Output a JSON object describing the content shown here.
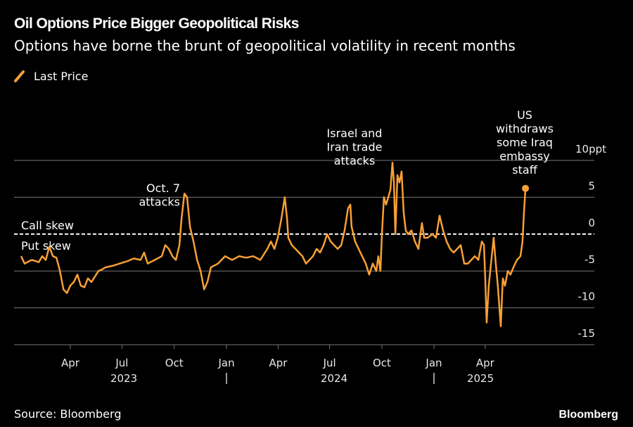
{
  "chart_data": {
    "type": "line",
    "title": "Oil Options Price Bigger Geopolitical Risks",
    "subtitle": "Options have borne the brunt of geopolitical volatility in recent months",
    "source": "Source: Bloomberg",
    "brand": "Bloomberg",
    "zero_labels": [
      "Call skew",
      "Put skew"
    ],
    "annotations": [
      {
        "text": [
          "Oct. 7",
          "attacks"
        ]
      },
      {
        "text": [
          "Israel and",
          "Iran trade",
          "attacks"
        ]
      },
      {
        "text": [
          "US",
          "withdraws",
          "some Iraq",
          "embassy",
          "staff"
        ]
      }
    ],
    "xlim": [
      2022.976,
      2025.773
    ],
    "xticks": [
      {
        "value": 2023.247,
        "label": "Apr"
      },
      {
        "value": 2023.496,
        "label": "Jul"
      },
      {
        "value": 2023.748,
        "label": "Oct"
      },
      {
        "value": 2024.0,
        "label": "Jan"
      },
      {
        "value": 2024.249,
        "label": "Apr"
      },
      {
        "value": 2024.497,
        "label": "Jul"
      },
      {
        "value": 2024.749,
        "label": "Oct"
      },
      {
        "value": 2025.0,
        "label": "Jan"
      },
      {
        "value": 2025.247,
        "label": "Apr"
      }
    ],
    "year_labels": [
      {
        "value": 2023.505,
        "label": "2023"
      },
      {
        "value": 2024.519,
        "label": "2024"
      },
      {
        "value": 2025.224,
        "label": "2025"
      }
    ],
    "year_separators": [
      2024,
      2025
    ],
    "ylim": [
      -15,
      10
    ],
    "yticks": [
      {
        "value": 10,
        "label": "10ppt"
      },
      5,
      0,
      -5,
      -10,
      -15
    ],
    "grid": true,
    "legend": "top-left",
    "x": [
      2023.01,
      2023.027,
      2023.061,
      2023.095,
      2023.112,
      2023.129,
      2023.146,
      2023.163,
      2023.18,
      2023.197,
      2023.214,
      2023.231,
      2023.247,
      2023.264,
      2023.281,
      2023.298,
      2023.315,
      2023.332,
      2023.349,
      2023.383,
      2023.4,
      2023.417,
      2023.451,
      2023.485,
      2023.519,
      2023.553,
      2023.586,
      2023.603,
      2023.62,
      2023.654,
      2023.688,
      2023.705,
      2023.722,
      2023.739,
      2023.756,
      2023.773,
      2023.783,
      2023.797,
      2023.81,
      2023.824,
      2023.841,
      2023.858,
      2023.875,
      2023.892,
      2023.908,
      2023.925,
      2023.959,
      2023.993,
      2024.027,
      2024.061,
      2024.095,
      2024.129,
      2024.163,
      2024.197,
      2024.214,
      2024.231,
      2024.247,
      2024.264,
      2024.281,
      2024.292,
      2024.298,
      2024.315,
      2024.332,
      2024.349,
      2024.366,
      2024.383,
      2024.4,
      2024.417,
      2024.434,
      2024.451,
      2024.468,
      2024.485,
      2024.502,
      2024.519,
      2024.536,
      2024.553,
      2024.569,
      2024.586,
      2024.597,
      2024.603,
      2024.62,
      2024.637,
      2024.654,
      2024.671,
      2024.688,
      2024.705,
      2024.722,
      2024.732,
      2024.742,
      2024.749,
      2024.759,
      2024.769,
      2024.78,
      2024.79,
      2024.8,
      2024.807,
      2024.814,
      2024.824,
      2024.834,
      2024.844,
      2024.854,
      2024.864,
      2024.875,
      2024.892,
      2024.908,
      2024.925,
      2024.942,
      2024.953,
      2024.969,
      2024.993,
      2025.01,
      2025.027,
      2025.044,
      2025.061,
      2025.078,
      2025.095,
      2025.112,
      2025.129,
      2025.146,
      2025.163,
      2025.18,
      2025.197,
      2025.214,
      2025.231,
      2025.241,
      2025.247,
      2025.254,
      2025.264,
      2025.275,
      2025.288,
      2025.298,
      2025.308,
      2025.322,
      2025.332,
      2025.342,
      2025.356,
      2025.369,
      2025.383,
      2025.4,
      2025.417,
      2025.427,
      2025.434,
      2025.441
    ],
    "series": [
      {
        "name": "Last Price",
        "color": "#f7a035",
        "values": [
          -3,
          -4,
          -3.5,
          -3.8,
          -3,
          -3.5,
          -1.7,
          -3,
          -3.2,
          -5,
          -7.5,
          -8,
          -7,
          -6.5,
          -5.5,
          -7,
          -7.2,
          -6,
          -6.5,
          -5,
          -4.8,
          -4.5,
          -4.3,
          -4,
          -3.7,
          -3.3,
          -3.5,
          -2.5,
          -4,
          -3.5,
          -3,
          -1.5,
          -2,
          -3,
          -3.5,
          -1.5,
          2,
          5.5,
          5,
          1,
          -1,
          -3.5,
          -5,
          -7.5,
          -6.5,
          -4.5,
          -4,
          -3,
          -3.5,
          -3,
          -3.2,
          -3,
          -3.5,
          -2,
          -1,
          -2,
          -0.5,
          2,
          5,
          2,
          -0.5,
          -1.5,
          -2,
          -2.5,
          -3,
          -4,
          -3.5,
          -3,
          -2,
          -2.5,
          -1.5,
          0,
          -1,
          -1.5,
          -2,
          -1.5,
          0.5,
          3.5,
          4,
          1,
          -1,
          -2,
          -3,
          -4,
          -5.5,
          -4,
          -5,
          -3,
          -5,
          0,
          5,
          4,
          5,
          6,
          9.7,
          7,
          0,
          8,
          7,
          8.5,
          3,
          0.5,
          0,
          0.5,
          -1,
          -2,
          1.5,
          -0.5,
          -0.5,
          0,
          -0.5,
          2.5,
          0.5,
          -1,
          -2,
          -2.5,
          -2,
          -1.5,
          -4,
          -4,
          -3.5,
          -3,
          -3.5,
          -1,
          -1.5,
          -6,
          -12,
          -7,
          -4,
          -0.5,
          -4,
          -7,
          -12.5,
          -6,
          -7,
          -5,
          -5.5,
          -4.5,
          -3.5,
          -3,
          -1,
          3,
          6.2
        ]
      }
    ]
  }
}
